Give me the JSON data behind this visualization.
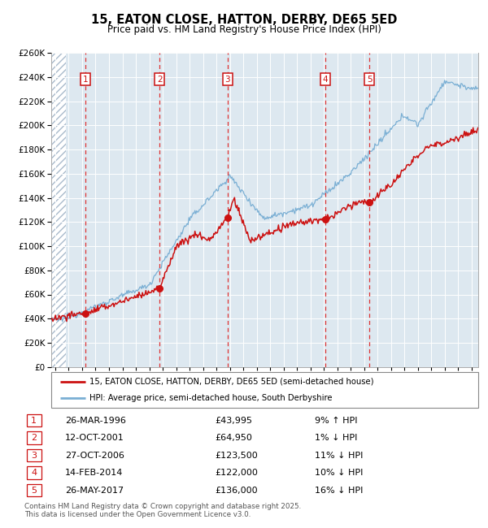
{
  "title": "15, EATON CLOSE, HATTON, DERBY, DE65 5ED",
  "subtitle": "Price paid vs. HM Land Registry's House Price Index (HPI)",
  "legend_line1": "15, EATON CLOSE, HATTON, DERBY, DE65 5ED (semi-detached house)",
  "legend_line2": "HPI: Average price, semi-detached house, South Derbyshire",
  "footer": "Contains HM Land Registry data © Crown copyright and database right 2025.\nThis data is licensed under the Open Government Licence v3.0.",
  "transactions": [
    {
      "num": 1,
      "date": "26-MAR-1996",
      "price": 43995,
      "pct": "9% ↑ HPI",
      "year": 1996.23
    },
    {
      "num": 2,
      "date": "12-OCT-2001",
      "price": 64950,
      "pct": "1% ↓ HPI",
      "year": 2001.78
    },
    {
      "num": 3,
      "date": "27-OCT-2006",
      "price": 123500,
      "pct": "11% ↓ HPI",
      "year": 2006.82
    },
    {
      "num": 4,
      "date": "14-FEB-2014",
      "price": 122000,
      "pct": "10% ↓ HPI",
      "year": 2014.12
    },
    {
      "num": 5,
      "date": "26-MAY-2017",
      "price": 136000,
      "pct": "16% ↓ HPI",
      "year": 2017.4
    }
  ],
  "ylim": [
    0,
    260000
  ],
  "ytick_step": 20000,
  "xlim_start": 1993.7,
  "xlim_end": 2025.5,
  "hpi_color": "#7aafd4",
  "price_color": "#cc1111",
  "dashed_line_color": "#dd3333",
  "bg_color": "#dde8f0",
  "grid_color": "#ffffff"
}
